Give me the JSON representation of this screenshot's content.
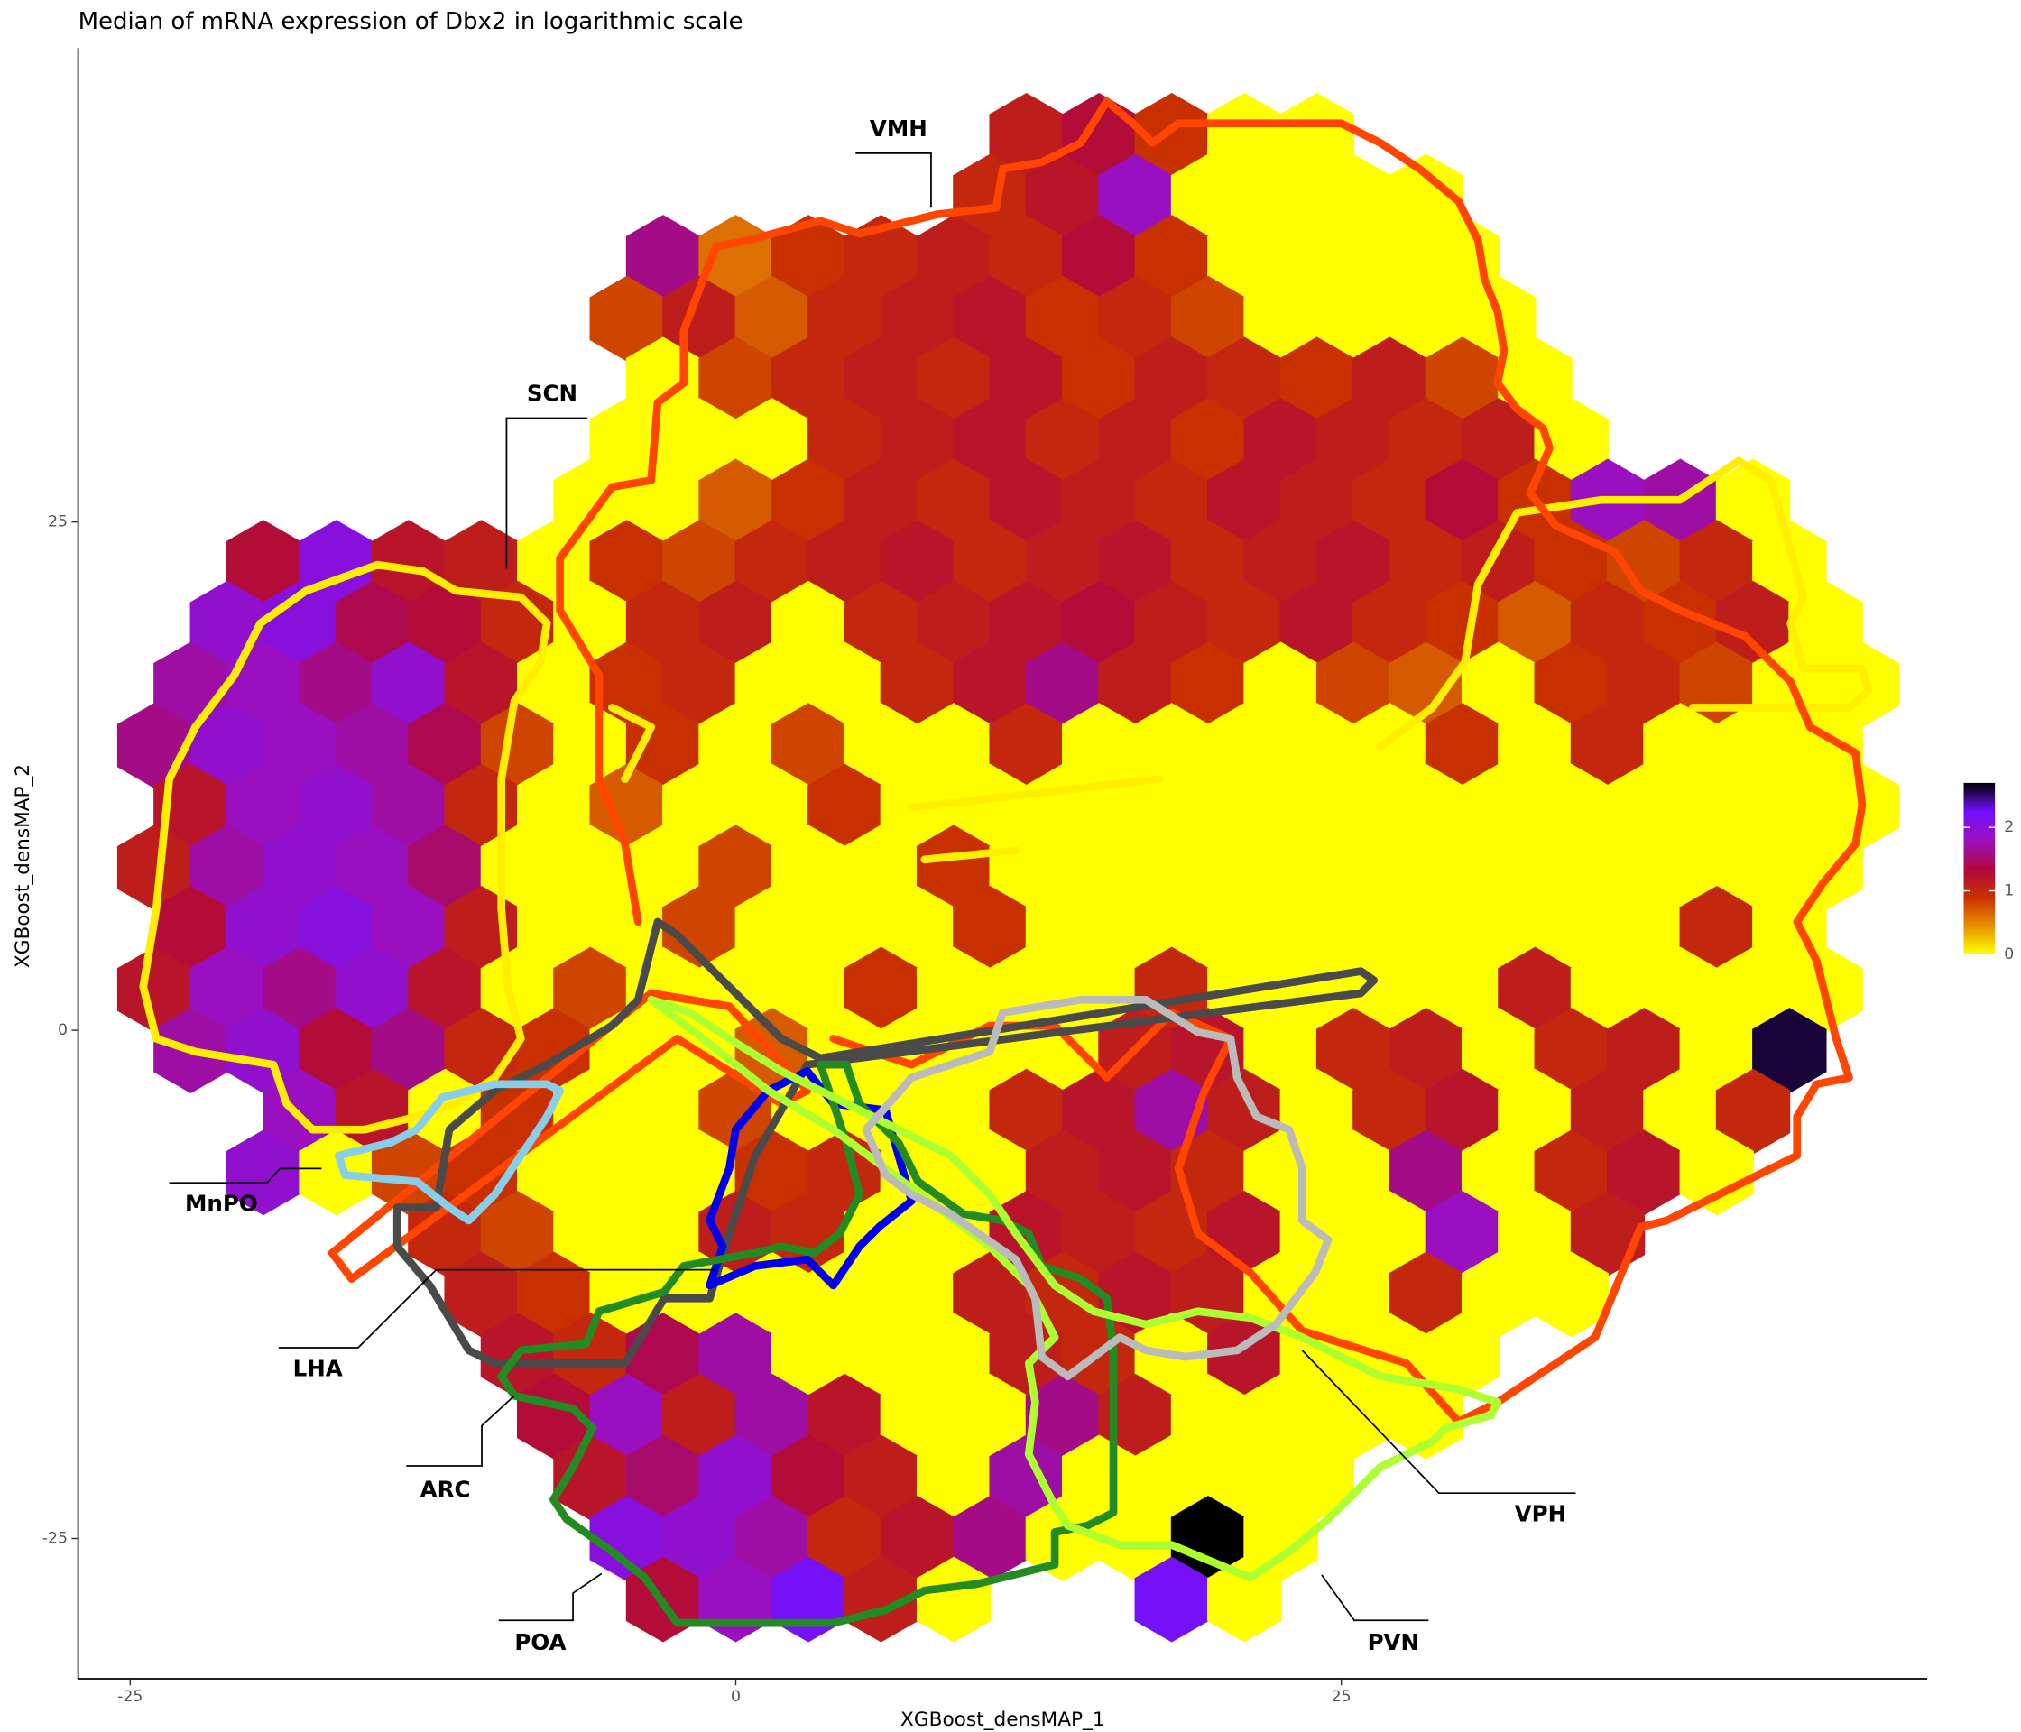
{
  "chart_data": {
    "type": "hexbin",
    "title": "Median of mRNA expression of Dbx2 in logarithmic scale",
    "x_label": "XGBoost_densMAP_1",
    "y_label": "XGBoost_densMAP_2",
    "xlim": [
      -27.15,
      49.19
    ],
    "ylim": [
      -31.9,
      48.31
    ],
    "xticks": [
      -25,
      0,
      25
    ],
    "yticks": [
      -25,
      0,
      25
    ],
    "clim": [
      0,
      2.7
    ],
    "cticks": [
      0,
      1,
      2
    ],
    "colors": [
      "#ffff00",
      "#e89000",
      "#c83000",
      "#b00840",
      "#9a10c0",
      "#7010ff",
      "#000000"
    ],
    "regions": [
      "VMH",
      "SCN",
      "MnPO",
      "LHA",
      "ARC",
      "POA",
      "VPH",
      "PVN"
    ],
    "hexbins": [
      {
        "y": 44,
        "x": [
          12,
          15,
          18,
          21,
          24
        ],
        "values": [
          1.1,
          1.3,
          0.9,
          0,
          0
        ]
      },
      {
        "y": 41,
        "x": [
          10.5,
          13.5,
          16.5,
          19.5,
          22.5,
          25.5,
          28.5
        ],
        "values": [
          1.0,
          1.2,
          1.8,
          0,
          0,
          0,
          0
        ]
      },
      {
        "y": 38,
        "x": [
          -3,
          0,
          3,
          6,
          9,
          12,
          15,
          18,
          21,
          24,
          27,
          30
        ],
        "values": [
          1.6,
          0.6,
          0.9,
          1.0,
          1.1,
          1.0,
          1.3,
          0.9,
          0,
          0,
          0,
          0
        ]
      },
      {
        "y": 35,
        "x": [
          -4.5,
          -1.5,
          1.5,
          4.5,
          7.5,
          10.5,
          13.5,
          16.5,
          19.5,
          22.5,
          25.5,
          28.5,
          31.5
        ],
        "values": [
          0.8,
          1.1,
          0.7,
          1.0,
          1.1,
          1.2,
          0.9,
          1.0,
          0.8,
          0,
          0,
          0,
          0
        ]
      },
      {
        "y": 32,
        "x": [
          -3,
          0,
          3,
          6,
          9,
          12,
          15,
          18,
          21,
          24,
          27,
          30,
          33
        ],
        "values": [
          0,
          0.8,
          1.0,
          1.1,
          1.0,
          1.2,
          0.9,
          1.1,
          1.0,
          0.9,
          1.1,
          0.8,
          0
        ]
      },
      {
        "y": 29,
        "x": [
          -4.5,
          -1.5,
          1.5,
          4.5,
          7.5,
          10.5,
          13.5,
          16.5,
          19.5,
          22.5,
          25.5,
          28.5,
          31.5,
          34.5
        ],
        "values": [
          0,
          0,
          0,
          1.0,
          1.1,
          1.2,
          1.0,
          1.1,
          0.9,
          1.2,
          1.1,
          1.0,
          1.1,
          0
        ]
      },
      {
        "y": 26,
        "x": [
          -6,
          -3,
          0,
          3,
          6,
          9,
          12,
          15,
          18,
          21,
          24,
          27,
          30,
          33,
          36,
          39,
          42
        ],
        "values": [
          0,
          0,
          0.7,
          0.9,
          1.1,
          1.0,
          1.2,
          1.1,
          1.0,
          1.2,
          1.1,
          1.0,
          1.3,
          0.9,
          1.8,
          1.7,
          0
        ]
      },
      {
        "y": 23,
        "x": [
          -19.5,
          -16.5,
          -13.5,
          -10.5,
          -7.5,
          -4.5,
          -1.5,
          1.5,
          4.5,
          7.5,
          10.5,
          13.5,
          16.5,
          19.5,
          22.5,
          25.5,
          28.5,
          31.5,
          34.5,
          37.5,
          40.5,
          43.5
        ],
        "values": [
          1.3,
          2.0,
          1.2,
          1.1,
          0,
          0.9,
          0.8,
          1.0,
          1.1,
          1.2,
          1.0,
          1.1,
          1.2,
          1.0,
          1.1,
          1.2,
          1.0,
          1.1,
          0.9,
          0.8,
          1.0,
          0
        ]
      },
      {
        "y": 20,
        "x": [
          -21,
          -18,
          -15,
          -12,
          -9,
          -6,
          -3,
          0,
          3,
          6,
          9,
          12,
          15,
          18,
          21,
          24,
          27,
          30,
          33,
          36,
          39,
          42,
          45
        ],
        "values": [
          1.9,
          2.0,
          1.4,
          1.3,
          1.0,
          0,
          1.0,
          1.1,
          0,
          1.0,
          1.1,
          1.2,
          1.3,
          1.1,
          1.0,
          1.2,
          1.0,
          0.9,
          0.7,
          1.0,
          0.9,
          1.1,
          0
        ]
      },
      {
        "y": 17,
        "x": [
          -22.5,
          -19.5,
          -16.5,
          -13.5,
          -10.5,
          -7.5,
          -4.5,
          -1.5,
          1.5,
          4.5,
          7.5,
          10.5,
          13.5,
          16.5,
          19.5,
          22.5,
          25.5,
          28.5,
          31.5,
          34.5,
          37.5,
          40.5,
          43.5,
          46.5
        ],
        "values": [
          1.7,
          1.8,
          1.6,
          1.9,
          1.2,
          0,
          0.9,
          1.0,
          0,
          0,
          1.0,
          1.2,
          1.6,
          1.1,
          0.9,
          0,
          0.8,
          0.7,
          0,
          0.9,
          1.0,
          0.8,
          0,
          0
        ]
      },
      {
        "y": 14,
        "x": [
          -24,
          -21,
          -18,
          -15,
          -12,
          -9,
          -6,
          -3,
          0,
          3,
          6,
          9,
          12,
          15,
          18,
          21,
          24,
          27,
          30,
          33,
          36,
          39,
          42,
          45
        ],
        "values": [
          1.6,
          1.9,
          1.8,
          1.7,
          1.4,
          0.8,
          0,
          0.9,
          0,
          0.8,
          0,
          0,
          1.0,
          0,
          0,
          0,
          0,
          0,
          0.9,
          0,
          1.0,
          0,
          0,
          0
        ]
      },
      {
        "y": 11,
        "x": [
          -22.5,
          -19.5,
          -16.5,
          -13.5,
          -10.5,
          -7.5,
          -4.5,
          -1.5,
          1.5,
          4.5,
          7.5,
          10.5,
          13.5,
          16.5,
          19.5,
          22.5,
          25.5,
          28.5,
          31.5,
          34.5,
          37.5,
          40.5,
          43.5,
          46.5
        ],
        "values": [
          1.2,
          1.8,
          1.9,
          1.7,
          1.0,
          0,
          0.7,
          0,
          0,
          0.9,
          0,
          0,
          0,
          0,
          0,
          0,
          0,
          0,
          0,
          0,
          0,
          0,
          0,
          0
        ]
      },
      {
        "y": 8,
        "x": [
          -24,
          -21,
          -18,
          -15,
          -12,
          -9,
          -6,
          -3,
          0,
          3,
          6,
          9,
          12,
          15,
          18,
          21,
          24,
          27,
          30,
          33,
          36,
          39,
          42,
          45
        ],
        "values": [
          1.1,
          1.7,
          1.9,
          1.8,
          1.5,
          0,
          0,
          0,
          0.8,
          0,
          0,
          0.9,
          0,
          0,
          0,
          0,
          0,
          0,
          0,
          0,
          0,
          0,
          0,
          0
        ]
      },
      {
        "y": 5,
        "x": [
          -22.5,
          -19.5,
          -16.5,
          -13.5,
          -10.5,
          -7.5,
          -4.5,
          -1.5,
          1.5,
          4.5,
          7.5,
          10.5,
          13.5,
          16.5,
          19.5,
          22.5,
          25.5,
          28.5,
          31.5,
          34.5,
          37.5,
          40.5,
          43.5
        ],
        "values": [
          1.3,
          1.9,
          2.0,
          1.8,
          1.1,
          0,
          0,
          0.8,
          0,
          0,
          0,
          0.9,
          0,
          0,
          0,
          0,
          0,
          0,
          0,
          0,
          0,
          1.0,
          0
        ]
      },
      {
        "y": 2,
        "x": [
          -24,
          -21,
          -18,
          -15,
          -12,
          -9,
          -6,
          -3,
          0,
          3,
          6,
          9,
          12,
          15,
          18,
          21,
          24,
          27,
          30,
          33,
          36,
          39,
          42,
          45
        ],
        "values": [
          1.2,
          1.8,
          1.6,
          1.9,
          1.2,
          0,
          0.8,
          0,
          0,
          0,
          0.9,
          0,
          0,
          0,
          1.0,
          0,
          0,
          0,
          0,
          1.1,
          0,
          0,
          0,
          0
        ]
      },
      {
        "y": -1,
        "x": [
          -22.5,
          -19.5,
          -16.5,
          -13.5,
          -10.5,
          -7.5,
          -4.5,
          -1.5,
          1.5,
          4.5,
          7.5,
          10.5,
          13.5,
          16.5,
          19.5,
          22.5,
          25.5,
          28.5,
          31.5,
          34.5,
          37.5,
          40.5,
          43.5
        ],
        "values": [
          1.7,
          1.9,
          1.3,
          1.6,
          1.0,
          0.9,
          0,
          0,
          0.7,
          0,
          0,
          0,
          0,
          1.1,
          1.2,
          0,
          1.0,
          1.1,
          0,
          1.0,
          1.1,
          0,
          2.6
        ]
      },
      {
        "y": -4,
        "x": [
          -18,
          -15,
          -12,
          -9,
          -6,
          -3,
          0,
          3,
          6,
          9,
          12,
          15,
          18,
          21,
          24,
          27,
          30,
          33,
          36,
          39,
          42
        ],
        "values": [
          1.8,
          1.2,
          0,
          0.9,
          0,
          0,
          0.8,
          0,
          0,
          0,
          1.0,
          1.2,
          1.7,
          1.1,
          0,
          1.0,
          1.2,
          0,
          1.1,
          0,
          1.0
        ]
      },
      {
        "y": -7,
        "x": [
          -19.5,
          -16.5,
          -13.5,
          -10.5,
          -7.5,
          -4.5,
          -1.5,
          1.5,
          4.5,
          7.5,
          10.5,
          13.5,
          16.5,
          19.5,
          22.5,
          25.5,
          28.5,
          31.5,
          34.5,
          37.5,
          40.5
        ],
        "values": [
          1.9,
          0,
          0.8,
          0.9,
          0,
          0,
          0,
          0.9,
          1.0,
          0,
          0,
          1.1,
          1.2,
          1.0,
          0,
          0,
          1.6,
          0,
          1.0,
          1.2,
          0
        ]
      },
      {
        "y": -10,
        "x": [
          -12,
          -9,
          -6,
          -3,
          0,
          3,
          6,
          9,
          12,
          15,
          18,
          21,
          24,
          27,
          30,
          33,
          36
        ],
        "values": [
          1.0,
          0.8,
          0,
          0,
          1.1,
          1.0,
          0,
          0,
          1.2,
          1.1,
          1.0,
          1.2,
          0,
          0,
          1.8,
          0,
          1.1
        ]
      },
      {
        "y": -13,
        "x": [
          -10.5,
          -7.5,
          -4.5,
          -1.5,
          1.5,
          4.5,
          7.5,
          10.5,
          13.5,
          16.5,
          19.5,
          22.5,
          25.5,
          28.5,
          31.5,
          34.5
        ],
        "values": [
          1.1,
          0.9,
          0,
          0,
          0,
          0,
          0,
          1.1,
          1.0,
          1.2,
          1.1,
          0,
          0,
          1.0,
          0,
          0
        ]
      },
      {
        "y": -16,
        "x": [
          -9,
          -6,
          -3,
          0,
          3,
          6,
          9,
          12,
          15,
          18,
          21,
          24,
          27,
          30
        ],
        "values": [
          1.2,
          1.0,
          1.4,
          1.7,
          0,
          0,
          0,
          1.1,
          1.0,
          0,
          1.2,
          0,
          0,
          0
        ]
      },
      {
        "y": -19,
        "x": [
          -7.5,
          -4.5,
          -1.5,
          1.5,
          4.5,
          7.5,
          10.5,
          13.5,
          16.5,
          19.5,
          22.5,
          25.5,
          28.5
        ],
        "values": [
          1.3,
          1.8,
          1.1,
          1.7,
          1.2,
          0,
          0,
          1.6,
          1.1,
          0,
          0,
          0,
          0
        ]
      },
      {
        "y": -22,
        "x": [
          -6,
          -3,
          0,
          3,
          6,
          9,
          12,
          15,
          18,
          21,
          24
        ],
        "values": [
          1.2,
          1.5,
          1.9,
          1.3,
          1.1,
          0,
          1.7,
          0,
          0,
          0,
          0
        ]
      },
      {
        "y": -25,
        "x": [
          -4.5,
          -1.5,
          1.5,
          4.5,
          7.5,
          10.5,
          13.5,
          16.5,
          19.5,
          22.5
        ],
        "values": [
          2.0,
          1.9,
          1.7,
          1.0,
          1.2,
          1.6,
          0,
          0,
          2.7,
          0
        ]
      },
      {
        "y": -28,
        "x": [
          -3,
          0,
          3,
          6,
          9,
          18,
          21
        ],
        "values": [
          1.3,
          1.8,
          2.2,
          1.1,
          0,
          2.2,
          0
        ]
      }
    ]
  }
}
